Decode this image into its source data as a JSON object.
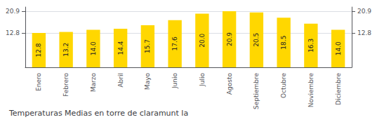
{
  "chart_data": {
    "type": "bar",
    "title": "Temperaturas Medias en torre de claramunt la",
    "categories": [
      "Enero",
      "Febrero",
      "Marzo",
      "Abril",
      "Mayo",
      "Junio",
      "Julio",
      "Agosto",
      "Septiembre",
      "Octubre",
      "Noviembre",
      "Diciembre"
    ],
    "values": [
      12.8,
      13.2,
      14.0,
      14.4,
      15.7,
      17.6,
      20.0,
      20.9,
      20.5,
      18.5,
      16.3,
      14.0
    ],
    "value_labels": [
      "12.8",
      "13.2",
      "14.0",
      "14.4",
      "15.7",
      "17.6",
      "20.0",
      "20.9",
      "20.5",
      "18.5",
      "16.3",
      "14.0"
    ],
    "data_labels": true,
    "color": "#FFD700",
    "ylim": [
      0,
      22.5
    ],
    "yticks": [
      12.8,
      20.9
    ],
    "y2lim": [
      0,
      22.5
    ],
    "y2ticks": [
      12.8,
      20.9
    ],
    "grid": true
  }
}
